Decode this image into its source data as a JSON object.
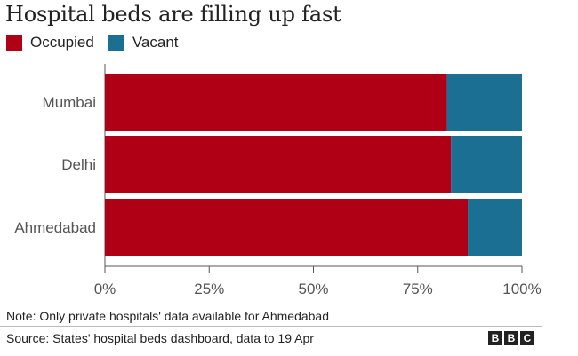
{
  "title": "Hospital beds are filling up fast",
  "note": "Note: Only private hospitals' data available for Ahmedabad",
  "source": "Source: States' hospital beds dashboard, data to 19 Apr",
  "logo": [
    "B",
    "B",
    "C"
  ],
  "colors": {
    "occupied": "#b00015",
    "vacant": "#1a6f93",
    "axis": "#555555",
    "grid": "#e0e0e0"
  },
  "chart_data": {
    "type": "bar",
    "orientation": "horizontal",
    "stacked": true,
    "title": "Hospital beds are filling up fast",
    "categories": [
      "Mumbai",
      "Delhi",
      "Ahmedabad"
    ],
    "series": [
      {
        "name": "Occupied",
        "values": [
          82,
          83,
          87
        ]
      },
      {
        "name": "Vacant",
        "values": [
          18,
          17,
          13
        ]
      }
    ],
    "xlim": [
      0,
      100
    ],
    "xticks": [
      0,
      25,
      50,
      75,
      100
    ],
    "xtick_labels": [
      "0%",
      "25%",
      "50%",
      "75%",
      "100%"
    ],
    "legend": "top-left",
    "grid": false
  }
}
